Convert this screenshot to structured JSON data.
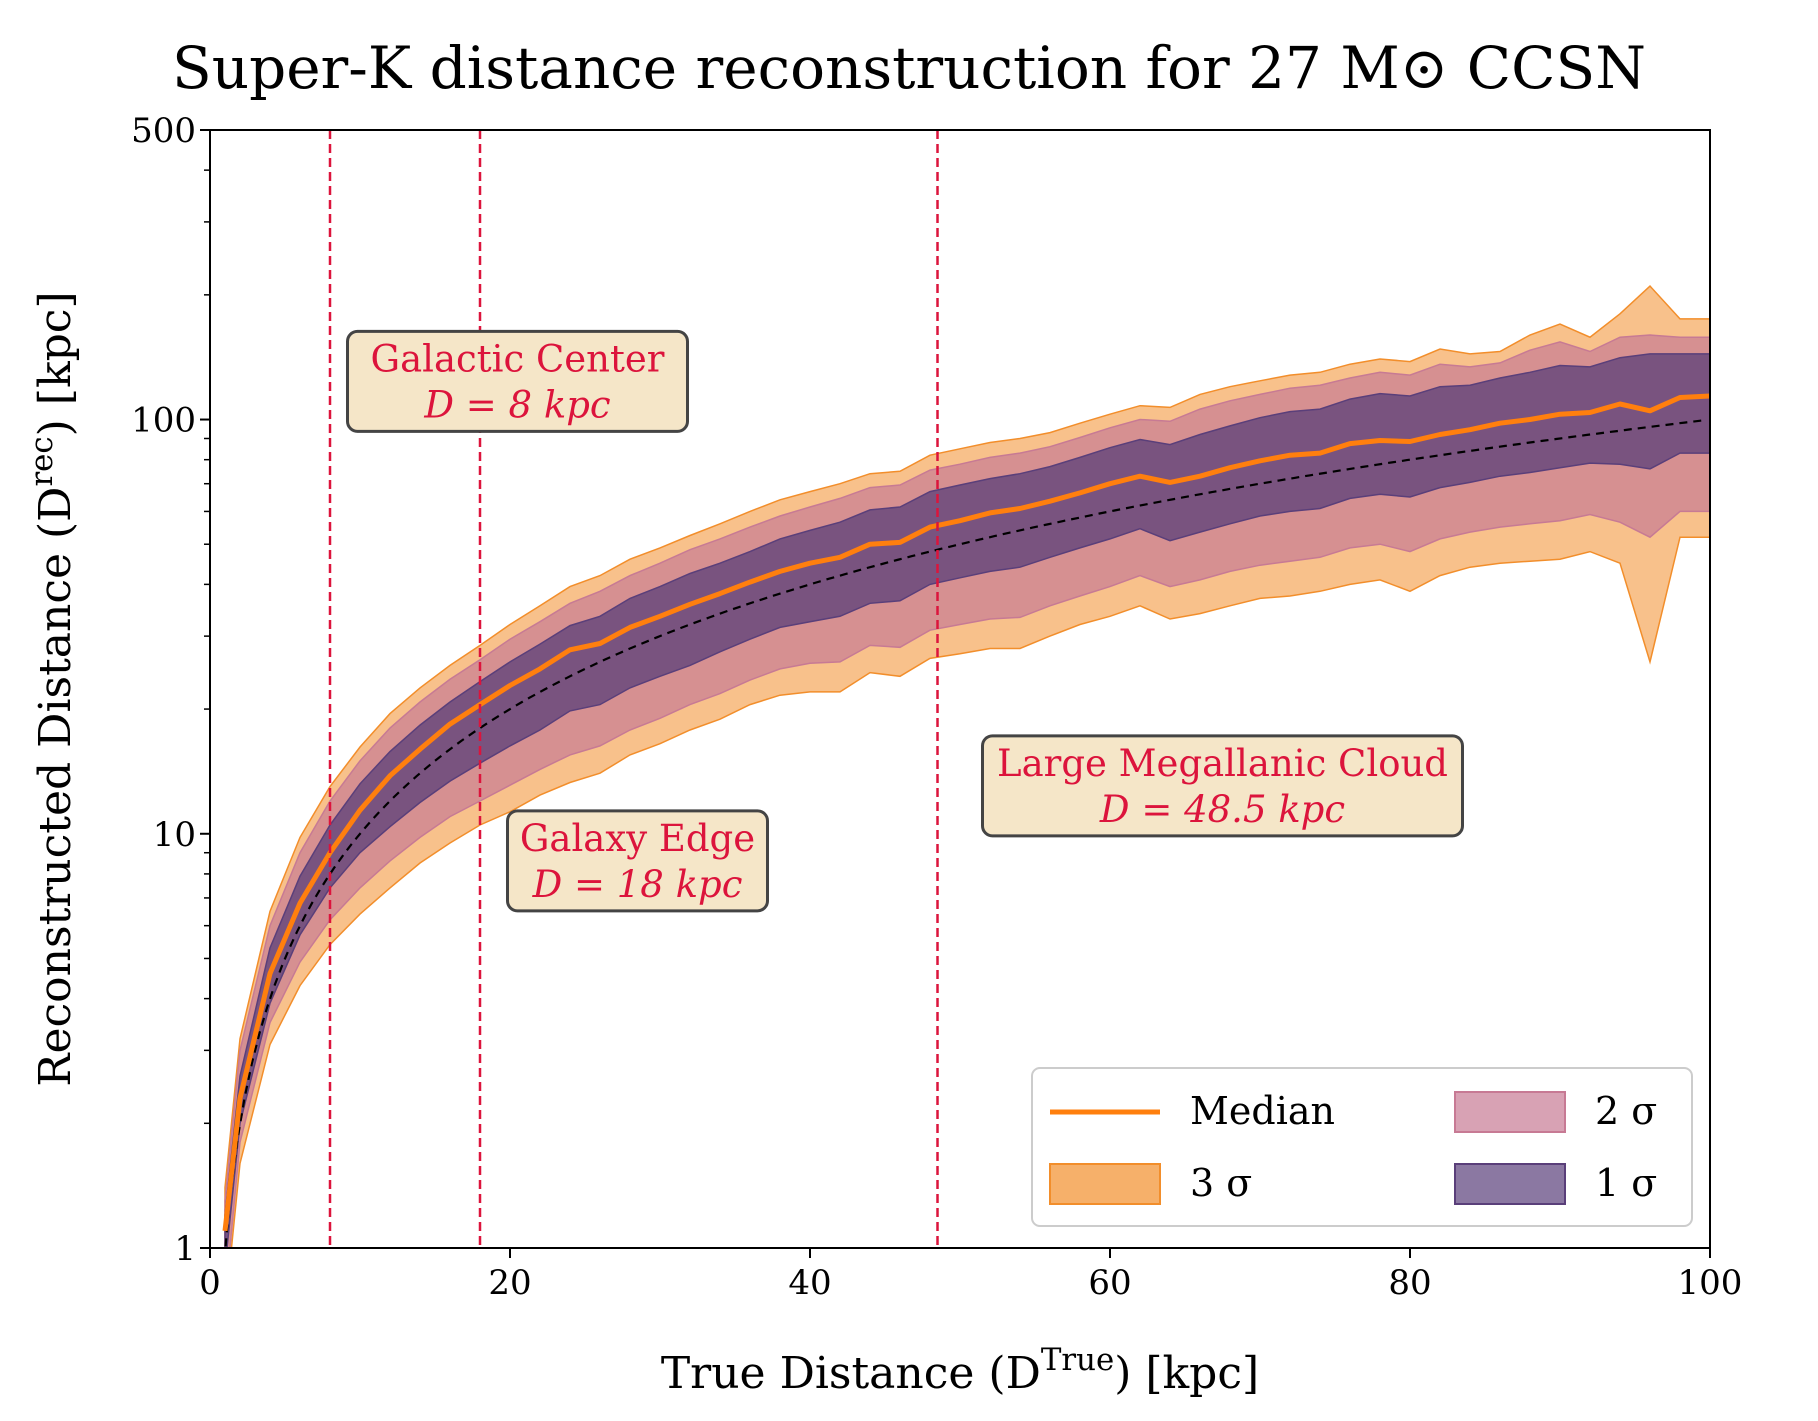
{
  "chart_data": {
    "type": "area",
    "title": "Super-K distance reconstruction for 27 M⊙ CCSN",
    "xlabel": "True Distance (D^True) [kpc]",
    "ylabel": "Reconstructed Distance (D^rec) [kpc]",
    "xlim": [
      0,
      100
    ],
    "ylim": [
      1,
      500
    ],
    "yscale": "log",
    "x_ticks": [
      0,
      20,
      40,
      60,
      80,
      100
    ],
    "y_ticks": [
      1,
      10,
      100,
      500
    ],
    "x": [
      1,
      2,
      4,
      6,
      8,
      10,
      12,
      14,
      16,
      18,
      20,
      22,
      24,
      26,
      28,
      30,
      32,
      34,
      36,
      38,
      40,
      42,
      44,
      46,
      48,
      50,
      52,
      54,
      56,
      58,
      60,
      62,
      64,
      66,
      68,
      70,
      72,
      74,
      76,
      78,
      80,
      82,
      84,
      86,
      88,
      90,
      92,
      94,
      96,
      98,
      100
    ],
    "series": [
      {
        "name": "Median",
        "kind": "line",
        "color": "#ff7f0e",
        "values": [
          1.1,
          2.3,
          4.6,
          6.8,
          9.0,
          11.4,
          13.8,
          16.0,
          18.4,
          20.5,
          22.8,
          25.0,
          27.8,
          28.8,
          31.5,
          33.5,
          35.8,
          38.0,
          40.5,
          43.0,
          45.0,
          46.5,
          50.0,
          50.5,
          55.0,
          57.0,
          59.5,
          61.0,
          63.5,
          66.5,
          70.0,
          73.0,
          70.5,
          73.0,
          76.5,
          79.5,
          82.0,
          83.0,
          87.5,
          89.0,
          88.5,
          92.0,
          94.5,
          98.0,
          100.0,
          103.0,
          104.0,
          109.0,
          105.0,
          113.0,
          114.0
        ]
      },
      {
        "name": "3 σ",
        "kind": "band",
        "color": "#f28e2b",
        "upper": [
          1.4,
          3.2,
          6.5,
          9.8,
          13.0,
          16.2,
          19.5,
          22.5,
          25.5,
          28.5,
          32.0,
          35.5,
          39.5,
          42.0,
          46.0,
          49.0,
          52.5,
          56.0,
          60.0,
          64.0,
          67.0,
          70.0,
          74.0,
          75.0,
          82.0,
          85.0,
          88.0,
          90.0,
          93.0,
          98.0,
          103.0,
          108.0,
          107.0,
          115.0,
          120.0,
          124.0,
          128.0,
          130.0,
          136.0,
          140.0,
          138.0,
          148.0,
          144.0,
          146.0,
          160.0,
          170.0,
          158.0,
          180.0,
          210.0,
          175.0,
          175.0
        ],
        "lower": [
          0.7,
          1.6,
          3.1,
          4.3,
          5.4,
          6.4,
          7.4,
          8.5,
          9.5,
          10.5,
          11.3,
          12.4,
          13.3,
          14.0,
          15.5,
          16.5,
          17.8,
          18.9,
          20.5,
          21.6,
          22.0,
          22.0,
          24.5,
          24.0,
          26.5,
          27.2,
          28.0,
          28.0,
          30.0,
          32.0,
          33.5,
          35.5,
          33.0,
          34.0,
          35.5,
          37.0,
          37.5,
          38.5,
          40.0,
          41.0,
          38.5,
          42.0,
          44.0,
          45.0,
          45.5,
          46.0,
          48.0,
          45.0,
          26.0,
          52.0,
          52.0
        ]
      },
      {
        "name": "2 σ",
        "kind": "band",
        "color": "#c77a94",
        "upper": [
          1.3,
          3.0,
          6.0,
          9.0,
          12.0,
          15.0,
          18.0,
          20.8,
          23.6,
          26.3,
          29.5,
          32.5,
          36.0,
          38.5,
          42.0,
          45.0,
          48.5,
          51.5,
          55.0,
          58.5,
          61.5,
          64.5,
          68.5,
          69.5,
          75.5,
          78.0,
          81.0,
          83.0,
          86.0,
          90.5,
          95.5,
          100.0,
          99.0,
          106.0,
          111.0,
          115.0,
          119.0,
          121.0,
          126.0,
          130.0,
          128.0,
          136.0,
          134.0,
          137.0,
          147.0,
          154.0,
          146.0,
          158.0,
          160.0,
          158.0,
          158.0
        ],
        "lower": [
          0.75,
          1.8,
          3.5,
          4.9,
          6.2,
          7.4,
          8.6,
          9.8,
          11.0,
          12.0,
          13.1,
          14.3,
          15.5,
          16.3,
          17.8,
          19.0,
          20.5,
          21.8,
          23.5,
          25.0,
          25.8,
          26.0,
          28.5,
          28.2,
          31.0,
          32.0,
          33.0,
          33.3,
          35.5,
          37.5,
          39.5,
          42.0,
          39.5,
          41.0,
          43.0,
          44.5,
          45.5,
          46.5,
          49.0,
          50.0,
          48.0,
          51.5,
          53.5,
          55.0,
          56.0,
          57.0,
          59.0,
          56.5,
          52.0,
          60.0,
          60.0
        ]
      },
      {
        "name": "1 σ",
        "kind": "band",
        "color": "#5a3f7a",
        "upper": [
          1.2,
          2.6,
          5.3,
          7.9,
          10.5,
          13.2,
          15.8,
          18.3,
          20.8,
          23.3,
          26.0,
          28.7,
          31.8,
          33.5,
          37.0,
          39.5,
          42.5,
          45.0,
          48.0,
          51.5,
          54.0,
          56.5,
          60.5,
          61.5,
          67.0,
          69.5,
          72.0,
          74.0,
          77.0,
          81.0,
          85.5,
          89.5,
          87.0,
          92.0,
          96.5,
          101.0,
          104.5,
          106.0,
          112.0,
          115.5,
          114.0,
          120.0,
          121.0,
          126.0,
          130.0,
          135.0,
          134.0,
          141.0,
          144.0,
          144.0,
          144.0
        ],
        "lower": [
          0.9,
          2.0,
          3.9,
          5.7,
          7.4,
          9.0,
          10.4,
          11.9,
          13.4,
          14.8,
          16.3,
          17.8,
          19.8,
          20.5,
          22.5,
          24.0,
          25.5,
          27.5,
          29.5,
          31.5,
          32.5,
          33.5,
          36.0,
          36.5,
          40.0,
          41.5,
          43.0,
          44.0,
          46.5,
          49.0,
          51.5,
          54.5,
          51.0,
          53.5,
          56.0,
          58.5,
          60.0,
          61.0,
          64.5,
          66.0,
          65.0,
          68.5,
          70.5,
          73.0,
          74.5,
          76.5,
          78.5,
          78.0,
          76.0,
          83.0,
          83.0
        ]
      }
    ],
    "reference_line": {
      "style": "dashed",
      "color": "#000000",
      "relation": "y = x"
    },
    "vlines": [
      {
        "x": 8,
        "color": "#dc143c"
      },
      {
        "x": 18,
        "color": "#dc143c"
      },
      {
        "x": 48.5,
        "color": "#dc143c"
      }
    ],
    "annotations": [
      {
        "line1": "Galactic Center",
        "line2": "D = 8 kpc",
        "x": 20.5,
        "y": 125
      },
      {
        "line1": "Galaxy Edge",
        "line2": "D = 18 kpc",
        "x": 28.5,
        "y": 8.7
      },
      {
        "line1": "Large Megallanic Cloud",
        "line2": "D = 48.5 kpc",
        "x": 67.5,
        "y": 13.2
      }
    ],
    "annotation_style": {
      "text_color": "#dc143c",
      "box_fill": "#f5e6c8",
      "box_edge": "#444444"
    },
    "legend": {
      "placement": "lower-right",
      "entries": [
        {
          "label": "Median",
          "kind": "line",
          "color": "#ff7f0e"
        },
        {
          "label": "2 σ",
          "kind": "patch",
          "color": "#c77a94"
        },
        {
          "label": "3 σ",
          "kind": "patch",
          "color": "#f28e2b"
        },
        {
          "label": "1 σ",
          "kind": "patch",
          "color": "#5a3f7a"
        }
      ]
    },
    "grid": false
  }
}
